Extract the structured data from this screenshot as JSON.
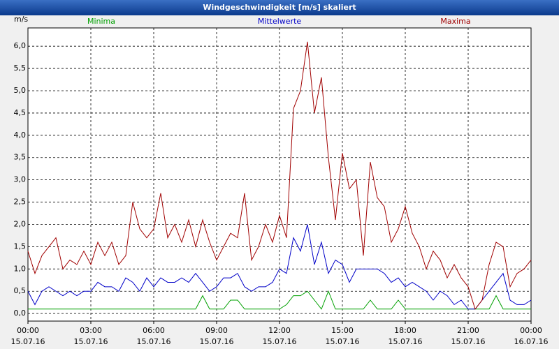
{
  "chart_data": {
    "type": "line",
    "title": "Windgeschwindigkeit [m/s] skaliert",
    "y_unit": "m/s",
    "x": [
      0,
      20,
      40,
      60,
      80,
      100,
      120,
      140,
      160,
      180,
      200,
      220,
      240,
      260,
      280,
      300,
      320,
      340,
      360,
      380,
      400,
      420,
      440,
      460,
      480,
      500,
      520,
      540,
      560,
      580,
      600,
      620,
      640,
      660,
      680,
      700,
      720,
      740,
      760,
      780,
      800,
      820,
      840,
      860,
      880,
      900,
      920,
      940,
      960,
      980,
      1000,
      1020,
      1040,
      1060,
      1080,
      1100,
      1120,
      1140,
      1160,
      1180,
      1200,
      1220,
      1240,
      1260,
      1280,
      1300,
      1320,
      1340,
      1360,
      1380,
      1400,
      1420,
      1440
    ],
    "series": [
      {
        "name": "Minima",
        "color": "#00a000",
        "values": [
          0.1,
          0.1,
          0.1,
          0.1,
          0.1,
          0.1,
          0.1,
          0.1,
          0.1,
          0.1,
          0.1,
          0.1,
          0.1,
          0.1,
          0.1,
          0.1,
          0.1,
          0.1,
          0.1,
          0.1,
          0.1,
          0.1,
          0.1,
          0.1,
          0.1,
          0.4,
          0.1,
          0.1,
          0.1,
          0.3,
          0.3,
          0.1,
          0.1,
          0.1,
          0.1,
          0.1,
          0.1,
          0.2,
          0.4,
          0.4,
          0.5,
          0.3,
          0.1,
          0.5,
          0.1,
          0.1,
          0.1,
          0.1,
          0.1,
          0.3,
          0.1,
          0.1,
          0.1,
          0.3,
          0.1,
          0.1,
          0.1,
          0.1,
          0.1,
          0.1,
          0.1,
          0.1,
          0.1,
          0.1,
          0.1,
          0.1,
          0.1,
          0.4,
          0.1,
          0.1,
          0.1,
          0.1,
          0.1
        ]
      },
      {
        "name": "Mittelwerte",
        "color": "#0000c8",
        "values": [
          0.5,
          0.2,
          0.5,
          0.6,
          0.5,
          0.4,
          0.5,
          0.4,
          0.5,
          0.5,
          0.7,
          0.6,
          0.6,
          0.5,
          0.8,
          0.7,
          0.5,
          0.8,
          0.6,
          0.8,
          0.7,
          0.7,
          0.8,
          0.7,
          0.9,
          0.7,
          0.5,
          0.6,
          0.8,
          0.8,
          0.9,
          0.6,
          0.5,
          0.6,
          0.6,
          0.7,
          1.0,
          0.9,
          1.7,
          1.4,
          2.0,
          1.1,
          1.6,
          0.9,
          1.2,
          1.1,
          0.7,
          1.0,
          1.0,
          1.0,
          1.0,
          0.9,
          0.7,
          0.8,
          0.6,
          0.7,
          0.6,
          0.5,
          0.3,
          0.5,
          0.4,
          0.2,
          0.3,
          0.1,
          0.1,
          0.3,
          0.5,
          0.7,
          0.9,
          0.3,
          0.2,
          0.2,
          0.3
        ]
      },
      {
        "name": "Maxima",
        "color": "#a00000",
        "values": [
          1.4,
          0.9,
          1.3,
          1.5,
          1.7,
          1.0,
          1.2,
          1.1,
          1.4,
          1.1,
          1.6,
          1.3,
          1.6,
          1.1,
          1.3,
          2.5,
          1.9,
          1.7,
          1.9,
          2.7,
          1.7,
          2.0,
          1.6,
          2.1,
          1.5,
          2.1,
          1.6,
          1.2,
          1.5,
          1.8,
          1.7,
          2.7,
          1.2,
          1.5,
          2.0,
          1.6,
          2.2,
          1.7,
          4.6,
          5.0,
          6.1,
          4.5,
          5.3,
          3.5,
          2.1,
          3.6,
          2.8,
          3.0,
          1.3,
          3.4,
          2.6,
          2.4,
          1.6,
          1.9,
          2.4,
          1.8,
          1.5,
          1.0,
          1.4,
          1.2,
          0.8,
          1.1,
          0.8,
          0.6,
          0.1,
          0.3,
          1.1,
          1.6,
          1.5,
          0.6,
          0.9,
          1.0,
          1.2
        ]
      }
    ],
    "xlim": [
      0,
      1440
    ],
    "xticks": [
      {
        "value": 0,
        "label": "00:00"
      },
      {
        "value": 180,
        "label": "03:00"
      },
      {
        "value": 360,
        "label": "06:00"
      },
      {
        "value": 540,
        "label": "09:00"
      },
      {
        "value": 720,
        "label": "12:00"
      },
      {
        "value": 900,
        "label": "15:00"
      },
      {
        "value": 1080,
        "label": "18:00"
      },
      {
        "value": 1260,
        "label": "21:00"
      },
      {
        "value": 1440,
        "label": "00:00"
      }
    ],
    "xtick_dates": [
      "15.07.16",
      "15.07.16",
      "15.07.16",
      "15.07.16",
      "15.07.16",
      "15.07.16",
      "15.07.16",
      "15.07.16",
      "16.07.16"
    ],
    "ylim": [
      -0.17,
      6.41
    ],
    "yticks": [
      {
        "value": 0,
        "label": "0,0"
      },
      {
        "value": 0.5,
        "label": "0,5"
      },
      {
        "value": 1,
        "label": "1,0"
      },
      {
        "value": 1.5,
        "label": "1,5"
      },
      {
        "value": 2,
        "label": "2,0"
      },
      {
        "value": 2.5,
        "label": "2,5"
      },
      {
        "value": 3,
        "label": "3,0"
      },
      {
        "value": 3.5,
        "label": "3,5"
      },
      {
        "value": 4,
        "label": "4,0"
      },
      {
        "value": 4.5,
        "label": "4,5"
      },
      {
        "value": 5,
        "label": "5,0"
      },
      {
        "value": 5.5,
        "label": "5,5"
      },
      {
        "value": 6,
        "label": "6,0"
      }
    ],
    "grid": true
  }
}
